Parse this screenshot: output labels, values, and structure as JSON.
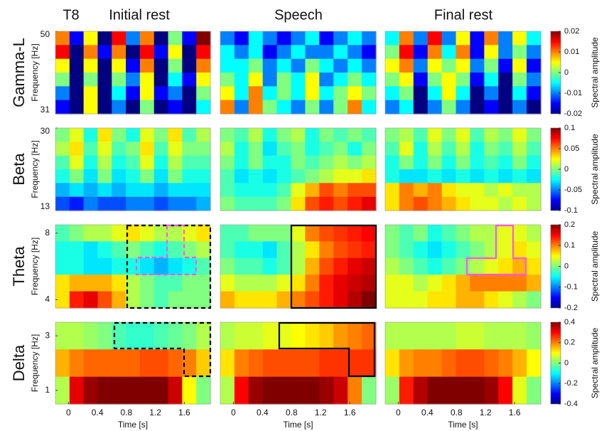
{
  "chart_data": [
    {
      "type": "heatmap",
      "heading": "T8",
      "label": "Gamma-L",
      "y_label": "Frequency [Hz]",
      "ylim": [
        31,
        50
      ],
      "yticks": [
        31,
        50
      ],
      "xlim": [
        -0.18,
        1.96
      ],
      "colorbar_label": "Spectral amplitude",
      "clim": [
        -0.02,
        0.02
      ],
      "cticks": [
        0.02,
        0.01,
        0,
        -0.01,
        -0.02
      ],
      "panels": [
        {
          "title": "Initial rest",
          "values": [
            [
              0.01,
              -0.015,
              0.005,
              -0.02,
              0.015,
              -0.01,
              0.01,
              -0.02,
              0.0,
              -0.015,
              0.02
            ],
            [
              0.015,
              -0.02,
              0.01,
              -0.015,
              0.01,
              -0.02,
              0.015,
              -0.015,
              0.005,
              -0.02,
              0.015
            ],
            [
              0.005,
              -0.02,
              0.005,
              -0.02,
              0.005,
              -0.015,
              0.01,
              -0.02,
              0.0,
              -0.02,
              0.01
            ],
            [
              0.0,
              -0.02,
              0.0,
              -0.02,
              0.0,
              -0.01,
              0.005,
              -0.02,
              -0.005,
              -0.015,
              0.005
            ],
            [
              -0.01,
              -0.02,
              0.005,
              -0.02,
              -0.005,
              -0.015,
              0.005,
              -0.015,
              -0.01,
              -0.02,
              0.0
            ],
            [
              -0.015,
              -0.02,
              0.005,
              -0.02,
              -0.01,
              -0.02,
              0.0,
              -0.02,
              -0.015,
              -0.02,
              -0.005
            ]
          ]
        },
        {
          "title": "Speech",
          "values": [
            [
              -0.01,
              -0.015,
              -0.005,
              -0.01,
              -0.015,
              -0.01,
              -0.005,
              -0.015,
              -0.01,
              -0.005,
              -0.01
            ],
            [
              -0.005,
              -0.01,
              -0.005,
              -0.015,
              -0.01,
              -0.005,
              -0.01,
              -0.01,
              -0.005,
              -0.01,
              -0.015
            ],
            [
              -0.005,
              -0.005,
              0.0,
              -0.01,
              -0.005,
              -0.01,
              0.0,
              -0.005,
              -0.01,
              -0.005,
              -0.01
            ],
            [
              0.0,
              -0.005,
              0.005,
              -0.01,
              0.0,
              -0.005,
              0.005,
              -0.01,
              -0.005,
              0.0,
              -0.005
            ],
            [
              0.005,
              -0.005,
              0.01,
              -0.005,
              0.0,
              -0.005,
              0.005,
              -0.005,
              0.0,
              0.005,
              0.0
            ],
            [
              0.01,
              -0.01,
              0.01,
              0.0,
              -0.005,
              -0.01,
              0.0,
              -0.01,
              0.0,
              0.01,
              -0.005
            ]
          ]
        },
        {
          "title": "Final rest",
          "values": [
            [
              -0.005,
              0.01,
              -0.01,
              0.015,
              -0.01,
              0.005,
              -0.015,
              0.01,
              -0.01,
              0.005,
              -0.005
            ],
            [
              0.0,
              0.015,
              -0.015,
              0.01,
              -0.005,
              0.01,
              -0.015,
              0.005,
              -0.01,
              0.0,
              -0.01
            ],
            [
              0.005,
              0.01,
              -0.01,
              0.005,
              0.0,
              0.005,
              -0.01,
              0.0,
              -0.015,
              0.005,
              -0.015
            ],
            [
              0.0,
              0.005,
              -0.015,
              0.0,
              0.005,
              0.0,
              -0.015,
              -0.005,
              -0.02,
              0.0,
              -0.01
            ],
            [
              -0.005,
              0.0,
              -0.02,
              -0.005,
              0.005,
              -0.005,
              -0.02,
              -0.01,
              -0.02,
              -0.005,
              -0.015
            ],
            [
              -0.01,
              -0.005,
              -0.02,
              -0.01,
              0.0,
              -0.01,
              -0.02,
              -0.015,
              -0.02,
              -0.01,
              -0.02
            ]
          ]
        }
      ]
    },
    {
      "type": "heatmap",
      "label": "Beta",
      "y_label": "Frequency [Hz]",
      "ylim": [
        13,
        30
      ],
      "yticks": [
        13,
        30
      ],
      "xlim": [
        -0.18,
        1.96
      ],
      "colorbar_label": "Spectral amplitude",
      "clim": [
        -0.1,
        0.1
      ],
      "cticks": [
        0.1,
        0.05,
        0,
        -0.05,
        -0.1
      ],
      "panels": [
        {
          "values": [
            [
              0,
              0.02,
              -0.02,
              0.03,
              0,
              -0.02,
              0.02,
              0,
              0.03,
              -0.01,
              0.01
            ],
            [
              0.01,
              0.03,
              -0.01,
              0.02,
              -0.01,
              0,
              0.03,
              -0.01,
              0.02,
              0,
              0
            ],
            [
              -0.01,
              0.02,
              -0.02,
              0.01,
              -0.02,
              -0.01,
              0.02,
              -0.02,
              0.01,
              -0.01,
              -0.01
            ],
            [
              -0.02,
              0,
              -0.03,
              0,
              -0.03,
              -0.02,
              0,
              -0.03,
              0,
              -0.02,
              -0.02
            ],
            [
              -0.04,
              -0.03,
              -0.04,
              -0.03,
              -0.04,
              -0.03,
              -0.03,
              -0.04,
              -0.03,
              -0.03,
              -0.03
            ],
            [
              -0.06,
              -0.07,
              -0.05,
              -0.06,
              -0.06,
              -0.05,
              -0.05,
              -0.06,
              -0.05,
              -0.05,
              -0.04
            ]
          ]
        },
        {
          "values": [
            [
              0,
              -0.01,
              0.01,
              -0.02,
              0,
              0.01,
              -0.02,
              0,
              -0.01,
              0,
              -0.01
            ],
            [
              0.01,
              -0.02,
              0,
              -0.03,
              -0.01,
              0,
              -0.02,
              -0.01,
              0,
              -0.02,
              0
            ],
            [
              0,
              -0.02,
              0,
              -0.02,
              -0.02,
              0,
              -0.01,
              0,
              0.01,
              0,
              0.01
            ],
            [
              -0.01,
              -0.03,
              -0.02,
              -0.03,
              -0.02,
              -0.01,
              0,
              0.01,
              0.02,
              0.02,
              0.03
            ],
            [
              -0.01,
              -0.02,
              -0.02,
              -0.02,
              -0.01,
              0.02,
              0.04,
              0.06,
              0.05,
              0.06,
              0.06
            ],
            [
              0,
              -0.01,
              -0.01,
              -0.01,
              0,
              0.03,
              0.06,
              0.07,
              0.06,
              0.07,
              0.08
            ]
          ]
        },
        {
          "values": [
            [
              0,
              0.01,
              -0.01,
              0.02,
              0,
              0.02,
              -0.01,
              0.01,
              0,
              0.02,
              0
            ],
            [
              -0.01,
              0.02,
              -0.02,
              0.01,
              -0.01,
              0.01,
              -0.02,
              0,
              -0.01,
              0.01,
              -0.01
            ],
            [
              -0.02,
              0,
              -0.02,
              0,
              -0.02,
              0,
              -0.02,
              -0.01,
              -0.02,
              0,
              -0.02
            ],
            [
              -0.02,
              -0.03,
              -0.03,
              -0.02,
              -0.03,
              -0.02,
              -0.03,
              -0.02,
              -0.03,
              -0.02,
              -0.03
            ],
            [
              0.03,
              0.05,
              0.04,
              0.05,
              0.03,
              0.02,
              0.02,
              0.01,
              0.02,
              0.01,
              0.01
            ],
            [
              0.03,
              0.05,
              0.06,
              0.05,
              0.04,
              0.03,
              0.02,
              0.02,
              0.01,
              0.02,
              0.01
            ]
          ]
        }
      ]
    },
    {
      "type": "heatmap",
      "label": "Theta",
      "y_label": "Frequency [Hz]",
      "ylim": [
        3.5,
        8.5
      ],
      "yticks": [
        4,
        8
      ],
      "xlim": [
        -0.18,
        1.96
      ],
      "colorbar_label": "Spectral amplitude",
      "clim": [
        -0.2,
        0.2
      ],
      "cticks": [
        0.2,
        0.1,
        0,
        -0.1,
        -0.2
      ],
      "panels": [
        {
          "values": [
            [
              -0.02,
              0,
              0.02,
              0.02,
              0.04,
              0.06,
              0.04,
              0.02,
              0.02,
              0.04,
              0.06
            ],
            [
              -0.04,
              -0.04,
              -0.06,
              -0.04,
              -0.02,
              0,
              -0.02,
              -0.04,
              -0.02,
              0,
              0.02
            ],
            [
              -0.04,
              -0.04,
              -0.06,
              -0.06,
              -0.04,
              -0.04,
              -0.06,
              -0.08,
              -0.06,
              -0.04,
              -0.02
            ],
            [
              0.06,
              0.08,
              0.08,
              0.08,
              0.06,
              0.02,
              0,
              -0.02,
              -0.02,
              0,
              0
            ],
            [
              0.06,
              0.14,
              0.16,
              0.12,
              0.08,
              0.02,
              0,
              -0.02,
              0,
              0,
              0
            ]
          ]
        },
        {
          "values": [
            [
              -0.02,
              -0.02,
              0,
              0,
              0,
              0.04,
              0.1,
              0.12,
              0.13,
              0.14,
              0.15
            ],
            [
              -0.02,
              -0.04,
              -0.04,
              -0.06,
              -0.02,
              0.02,
              0.06,
              0.1,
              0.12,
              0.13,
              0.14
            ],
            [
              0,
              -0.02,
              -0.02,
              -0.04,
              -0.02,
              0.02,
              0.08,
              0.12,
              0.14,
              0.16,
              0.17
            ],
            [
              0.04,
              0.02,
              0.02,
              0.02,
              0.04,
              0.06,
              0.1,
              0.14,
              0.16,
              0.17,
              0.18
            ],
            [
              0.08,
              0.06,
              0.06,
              0.06,
              0.08,
              0.1,
              0.12,
              0.14,
              0.16,
              0.18,
              0.2
            ]
          ]
        },
        {
          "values": [
            [
              0,
              -0.02,
              0,
              -0.04,
              -0.02,
              0,
              0.02,
              0.02,
              0.04,
              0.04,
              0.02
            ],
            [
              0,
              -0.02,
              -0.04,
              -0.06,
              -0.04,
              -0.02,
              0,
              0.02,
              0.04,
              0.06,
              0.04
            ],
            [
              0.02,
              0,
              -0.02,
              -0.04,
              -0.02,
              0,
              0.02,
              0.04,
              0.06,
              0.08,
              0.06
            ],
            [
              0.04,
              0.04,
              0.02,
              0.04,
              0.06,
              0.08,
              0.1,
              0.1,
              0.1,
              0.1,
              0.08
            ],
            [
              0.04,
              0.04,
              0.04,
              0.06,
              0.06,
              0.08,
              0.08,
              0.06,
              0.04,
              0.02,
              0
            ]
          ]
        }
      ]
    },
    {
      "type": "heatmap",
      "label": "Delta",
      "y_label": "Frequency [Hz]",
      "ylim": [
        0.5,
        3.5
      ],
      "yticks": [
        1,
        3
      ],
      "xlim": [
        -0.18,
        1.96
      ],
      "x_label": "Time [s]",
      "xticks": [
        0,
        0.4,
        0.8,
        1.2,
        1.6
      ],
      "colorbar_label": "Spectral amplitude",
      "clim": [
        -0.4,
        0.4
      ],
      "cticks": [
        0.4,
        0.2,
        0,
        -0.2,
        -0.4
      ],
      "panels": [
        {
          "values": [
            [
              0.04,
              0.04,
              0.02,
              0,
              -0.04,
              -0.06,
              -0.06,
              -0.04,
              -0.02,
              0,
              0.04
            ],
            [
              0.16,
              0.2,
              0.22,
              0.22,
              0.22,
              0.22,
              0.24,
              0.24,
              0.22,
              0.2,
              0.14
            ],
            [
              0.04,
              0.32,
              0.38,
              0.4,
              0.4,
              0.4,
              0.4,
              0.4,
              0.34,
              0.1,
              0
            ]
          ]
        },
        {
          "values": [
            [
              0.04,
              0.06,
              0.06,
              0.08,
              0.08,
              0.1,
              0.12,
              0.14,
              0.18,
              0.2,
              0.22
            ],
            [
              0.12,
              0.2,
              0.22,
              0.24,
              0.24,
              0.24,
              0.24,
              0.26,
              0.26,
              0.26,
              0.26
            ],
            [
              0.04,
              0.3,
              0.38,
              0.4,
              0.4,
              0.4,
              0.4,
              0.38,
              0.34,
              0.2,
              0
            ]
          ]
        },
        {
          "values": [
            [
              0.04,
              0.04,
              0.04,
              0.04,
              0.04,
              0.06,
              0.06,
              0.04,
              0.04,
              0.04,
              0.02
            ],
            [
              0.12,
              0.18,
              0.2,
              0.2,
              0.22,
              0.24,
              0.24,
              0.22,
              0.2,
              0.16,
              0.1
            ],
            [
              0.02,
              0.28,
              0.36,
              0.4,
              0.4,
              0.4,
              0.4,
              0.38,
              0.3,
              0.08,
              0
            ]
          ]
        }
      ]
    }
  ]
}
